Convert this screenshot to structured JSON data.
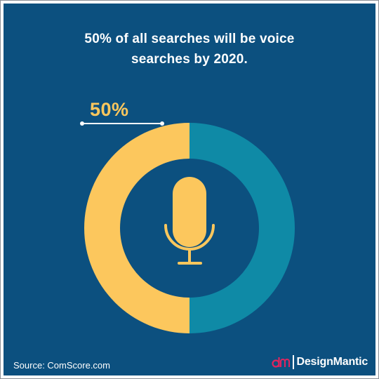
{
  "title_lines": [
    "50% of all searches will be voice",
    "searches by 2020."
  ],
  "chart_data": {
    "type": "pie",
    "variant": "donut",
    "values": [
      50,
      50
    ],
    "colors": [
      "#fcc75d",
      "#0f8aa6"
    ],
    "highlight_label": "50%"
  },
  "source": "Source: ComScore.com",
  "brand": {
    "name": "DesignMantic",
    "logo_color": "#e0245e"
  },
  "center_icon": "microphone-icon",
  "colors": {
    "background": "#0c507f",
    "accent_yellow": "#fcc75d",
    "accent_teal": "#0f8aa6",
    "text": "#ffffff"
  }
}
